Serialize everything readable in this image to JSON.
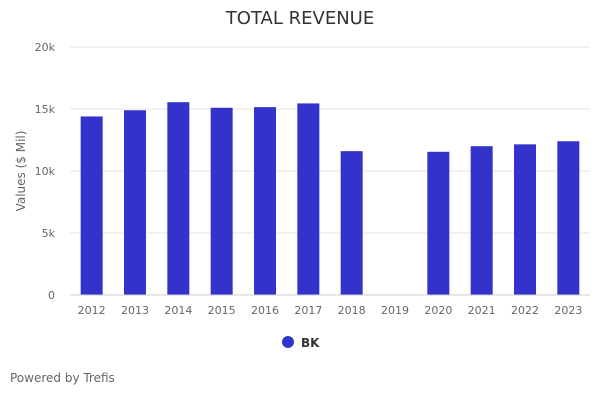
{
  "chart_data": {
    "type": "bar",
    "title": "TOTAL REVENUE",
    "xlabel": "",
    "ylabel": "Values ($ Mil)",
    "categories": [
      "2012",
      "2013",
      "2014",
      "2015",
      "2016",
      "2017",
      "2018",
      "2019",
      "2020",
      "2021",
      "2022",
      "2023"
    ],
    "series": [
      {
        "name": "BK",
        "color": "#3333cc",
        "values": [
          14400,
          14900,
          15550,
          15100,
          15150,
          15450,
          11600,
          null,
          11550,
          12000,
          12150,
          12400
        ]
      }
    ],
    "yticks": [
      0,
      5000,
      10000,
      15000,
      20000
    ],
    "ytick_labels": [
      "0",
      "5k",
      "10k",
      "15k",
      "20k"
    ],
    "ylim": [
      0,
      20000
    ],
    "grid": true,
    "legend_position": "bottom"
  },
  "credit": "Powered by Trefis"
}
